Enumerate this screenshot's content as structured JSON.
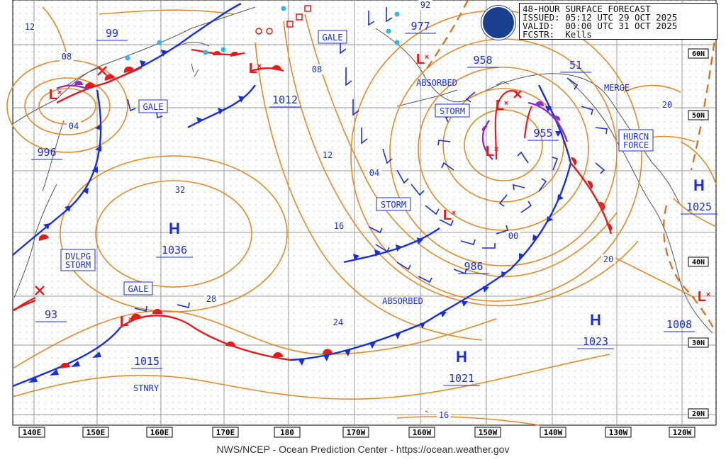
{
  "header": {
    "title": "48-HOUR SURFACE FORECAST",
    "issued": "ISSUED: 05:12 UTC 29 OCT 2025",
    "valid": "VALID:  00:00 UTC 31 OCT 2025",
    "forecaster": "FCSTR:  Kells",
    "logo": "NOAA"
  },
  "credit": "NWS/NCEP - Ocean Prediction Center - https://ocean.weather.gov",
  "longitude_labels": [
    "140E",
    "150E",
    "160E",
    "170E",
    "180",
    "170W",
    "160W",
    "150W",
    "140W",
    "130W",
    "120W"
  ],
  "latitude_labels": [
    "60N",
    "50N",
    "40N",
    "30N",
    "20N"
  ],
  "highs": [
    {
      "pressure": "1036"
    },
    {
      "pressure": "1023"
    },
    {
      "pressure": "1021"
    },
    {
      "pressure": "1025"
    }
  ],
  "lows": [
    {
      "pressure": "996"
    },
    {
      "pressure": "1012"
    },
    {
      "pressure": "958"
    },
    {
      "pressure": "955"
    },
    {
      "pressure": "986"
    },
    {
      "pressure": "1015"
    },
    {
      "pressure": "1008"
    },
    {
      "pressure": "977"
    },
    {
      "pressure": "93"
    },
    {
      "pressure": "99"
    },
    {
      "pressure": "51"
    }
  ],
  "boxed_labels": [
    "GALE",
    "GALE",
    "GALE",
    "STORM",
    "STORM",
    "DVLPG\nSTORM",
    "HURCN\nFORCE"
  ],
  "plain_labels": [
    "ABSORBED",
    "ABSORBED",
    "MERGE",
    "STNRY"
  ],
  "isobar_labels": [
    "12",
    "08",
    "04",
    "32",
    "28",
    "24",
    "16",
    "12",
    "08",
    "04",
    "00",
    "20",
    "20",
    "16",
    "92"
  ]
}
